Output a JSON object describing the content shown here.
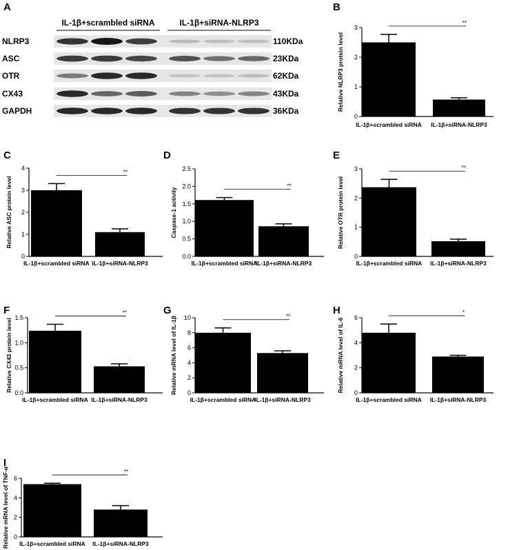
{
  "panel_a": {
    "label": "A",
    "groups": [
      "IL-1β+scrambled siRNA",
      "IL-1β+siRNA-NLRP3"
    ],
    "rows": [
      {
        "name": "NLRP3",
        "size": "110KDa",
        "g1": [
          0.85,
          1.0,
          0.8
        ],
        "g2": [
          0.2,
          0.18,
          0.18
        ]
      },
      {
        "name": "ASC",
        "size": "23KDa",
        "g1": [
          0.8,
          0.8,
          0.75
        ],
        "g2": [
          0.7,
          0.55,
          0.6
        ]
      },
      {
        "name": "OTR",
        "size": "62KDa",
        "g1": [
          0.5,
          0.9,
          0.9
        ],
        "g2": [
          0.15,
          0.15,
          0.18
        ]
      },
      {
        "name": "CX43",
        "size": "43KDa",
        "g1": [
          0.9,
          0.6,
          0.65
        ],
        "g2": [
          0.45,
          0.4,
          0.45
        ]
      },
      {
        "name": "GAPDH",
        "size": "36KDa",
        "g1": [
          0.9,
          0.9,
          0.9
        ],
        "g2": [
          0.85,
          0.85,
          0.85
        ]
      }
    ]
  },
  "chart_data": [
    {
      "panel": "B",
      "type": "bar",
      "categories": [
        "IL-1β+scrambled siRNA",
        "IL-1β+siRNA-NLRP3"
      ],
      "values": [
        2.5,
        0.57
      ],
      "errors": [
        0.27,
        0.06
      ],
      "ylabel": "Relative NLRP3 protein level",
      "ylim": [
        0,
        3
      ],
      "yticks": [
        "0",
        "1",
        "2",
        "3"
      ],
      "significance": "**"
    },
    {
      "panel": "C",
      "type": "bar",
      "categories": [
        "IL-1β+scrambled siRNA",
        "IL-1β+siRNA-NLRP3"
      ],
      "values": [
        3.0,
        1.1
      ],
      "errors": [
        0.3,
        0.15
      ],
      "ylabel": "Relative ASC protein level",
      "ylim": [
        0,
        4
      ],
      "yticks": [
        "0",
        "1",
        "2",
        "3",
        "4"
      ],
      "significance": "**"
    },
    {
      "panel": "D",
      "type": "bar",
      "categories": [
        "IL-1β+scrambled siRNA",
        "IL-1β+siRNA-NLRP3"
      ],
      "values": [
        1.61,
        0.86
      ],
      "errors": [
        0.07,
        0.07
      ],
      "ylabel": "Caspase-1 activity",
      "ylim": [
        0,
        2.5
      ],
      "yticks": [
        "0.0",
        "0.5",
        "1.0",
        "1.5",
        "2.0",
        "2.5"
      ],
      "significance": "**"
    },
    {
      "panel": "E",
      "type": "bar",
      "categories": [
        "IL-1β+scrambled siRNA",
        "IL-1β+siRNA-NLRP3"
      ],
      "values": [
        2.37,
        0.52
      ],
      "errors": [
        0.27,
        0.07
      ],
      "ylabel": "Relative OTR protein level",
      "ylim": [
        0,
        3
      ],
      "yticks": [
        "0",
        "1",
        "2",
        "3"
      ],
      "significance": "**"
    },
    {
      "panel": "F",
      "type": "bar",
      "categories": [
        "IL-1β+scrambled siRNA",
        "IL-1β+siRNA-NLRP3"
      ],
      "values": [
        1.24,
        0.53
      ],
      "errors": [
        0.13,
        0.05
      ],
      "ylabel": "Relative CX43 protein level",
      "ylim": [
        0,
        1.5
      ],
      "yticks": [
        "0.0",
        "0.5",
        "1.0",
        "1.5"
      ],
      "significance": "**"
    },
    {
      "panel": "G",
      "type": "bar",
      "categories": [
        "IL-1β+scrambled siRNA",
        "IL-1β+siRNA-NLRP3"
      ],
      "values": [
        8.0,
        5.3
      ],
      "errors": [
        0.65,
        0.3
      ],
      "ylabel": "Relative mRNA level of IL-1β",
      "ylim": [
        0,
        10
      ],
      "yticks": [
        "0",
        "2",
        "4",
        "6",
        "8",
        "10"
      ],
      "significance": "**"
    },
    {
      "panel": "H",
      "type": "bar",
      "categories": [
        "IL-1β+scrambled siRNA",
        "IL-1β+siRNA-NLRP3"
      ],
      "values": [
        4.8,
        2.9
      ],
      "errors": [
        0.7,
        0.1
      ],
      "ylabel": "Relative mRNA level of IL-6",
      "ylim": [
        0,
        6
      ],
      "yticks": [
        "0",
        "2",
        "4",
        "6"
      ],
      "significance": "*"
    },
    {
      "panel": "I",
      "type": "bar",
      "categories": [
        "IL-1β+scrambled siRNA",
        "IL-1β+siRNA-NLRP3"
      ],
      "values": [
        5.4,
        2.8
      ],
      "errors": [
        0.1,
        0.4
      ],
      "ylabel": "Relative mRNA level of TNF-α",
      "ylim": [
        0,
        6
      ],
      "yticks": [
        "0",
        "2",
        "4",
        "6"
      ],
      "significance": "**"
    }
  ]
}
